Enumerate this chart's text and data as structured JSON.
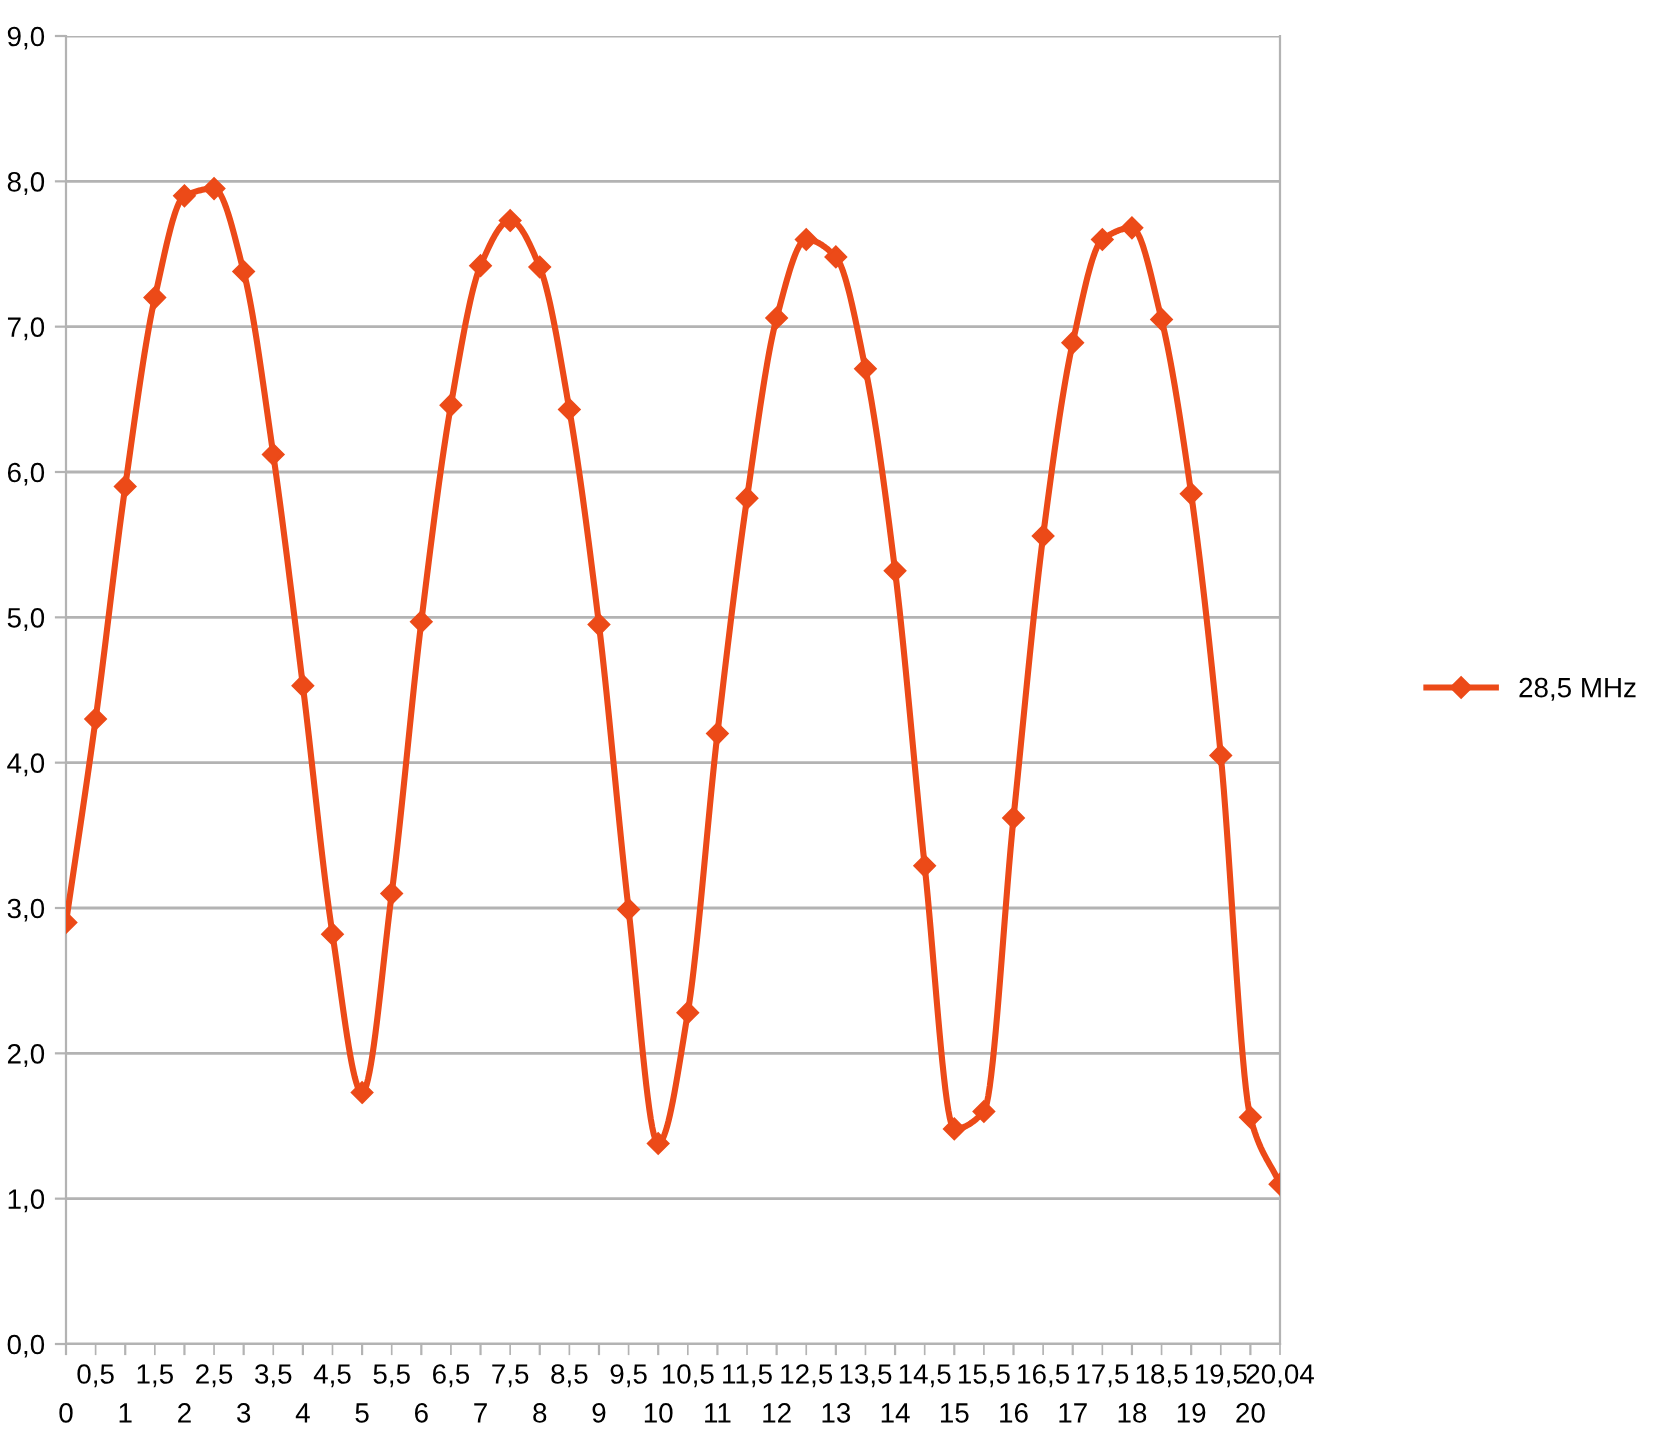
{
  "chart_data": {
    "type": "line",
    "categories": [
      "0",
      "0,5",
      "1",
      "1,5",
      "2",
      "2,5",
      "3",
      "3,5",
      "4",
      "4,5",
      "5",
      "5,5",
      "6",
      "6,5",
      "7",
      "7,5",
      "8",
      "8,5",
      "9",
      "9,5",
      "10",
      "10,5",
      "11",
      "11,5",
      "12",
      "12,5",
      "13",
      "13,5",
      "14",
      "14,5",
      "15",
      "15,5",
      "16",
      "16,5",
      "17",
      "17,5",
      "18",
      "18,5",
      "19",
      "19,5",
      "20",
      "20,04"
    ],
    "series": [
      {
        "name": "28,5 MHz",
        "color": "#ec4a18",
        "values": [
          2.9,
          4.3,
          5.9,
          7.2,
          7.9,
          7.95,
          7.38,
          6.12,
          4.53,
          2.82,
          1.73,
          3.1,
          4.97,
          6.46,
          7.42,
          7.73,
          7.41,
          6.43,
          4.95,
          2.99,
          1.38,
          2.28,
          4.2,
          5.82,
          7.06,
          7.6,
          7.48,
          6.71,
          5.32,
          3.29,
          1.48,
          1.6,
          3.62,
          5.56,
          6.89,
          7.6,
          7.68,
          7.05,
          5.85,
          4.05,
          1.56,
          1.1
        ]
      }
    ],
    "ylim": [
      0,
      9
    ],
    "yticks": [
      {
        "value": 0,
        "label": "0,0"
      },
      {
        "value": 1,
        "label": "1,0"
      },
      {
        "value": 2,
        "label": "2,0"
      },
      {
        "value": 3,
        "label": "3,0"
      },
      {
        "value": 4,
        "label": "4,0"
      },
      {
        "value": 5,
        "label": "5,0"
      },
      {
        "value": 6,
        "label": "6,0"
      },
      {
        "value": 7,
        "label": "7,0"
      },
      {
        "value": 8,
        "label": "8,0"
      },
      {
        "value": 9,
        "label": "9,0"
      }
    ],
    "grid": "y",
    "legend": "right",
    "marker": "diamond",
    "line_style": "solid"
  }
}
